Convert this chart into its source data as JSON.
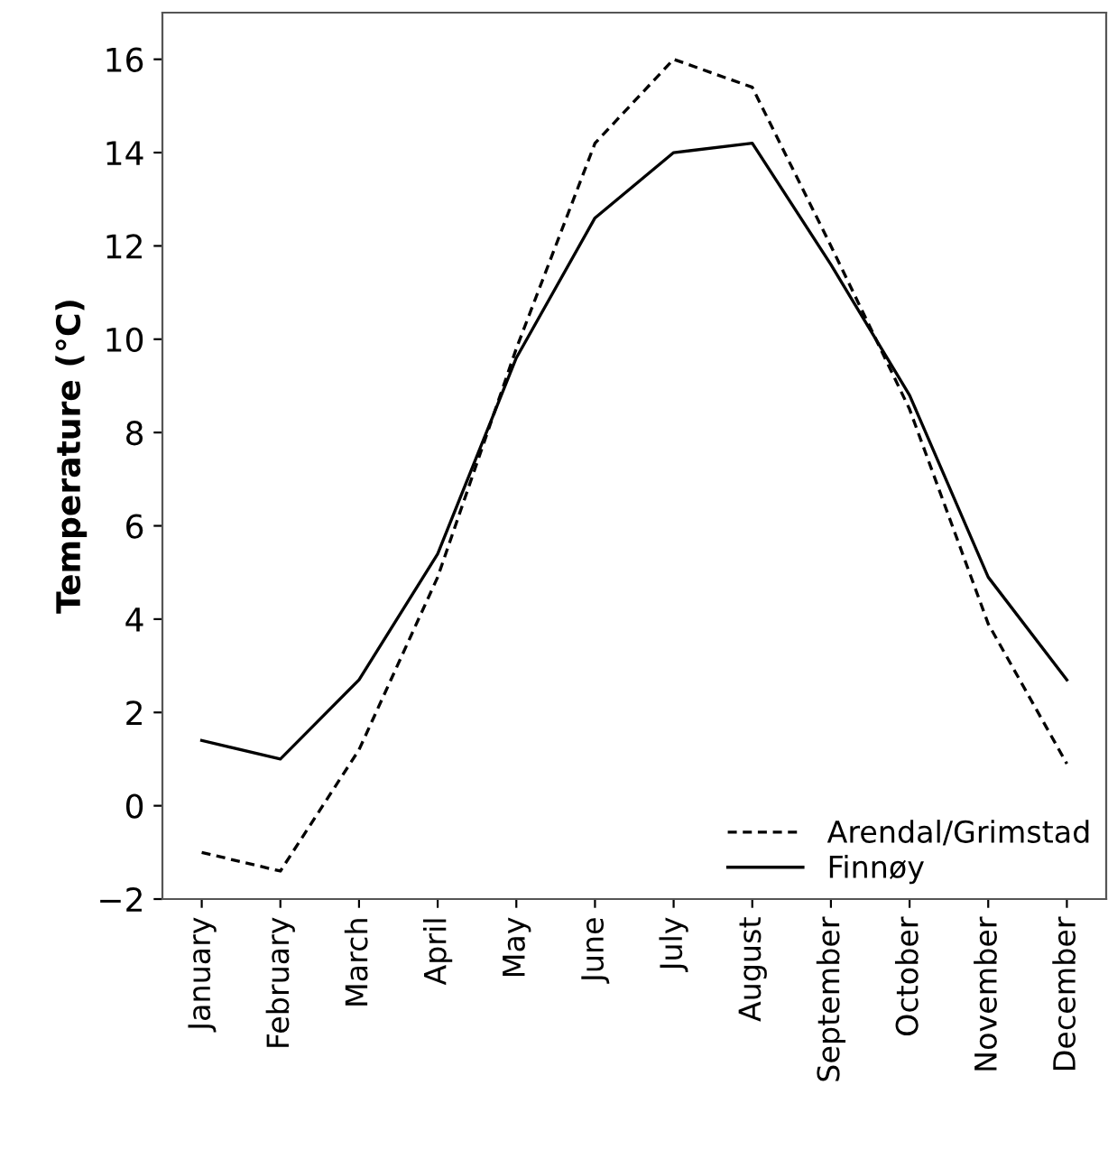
{
  "chart_data": {
    "type": "line",
    "ylabel": "Temperature (°C)",
    "categories": [
      "January",
      "February",
      "March",
      "April",
      "May",
      "June",
      "July",
      "August",
      "September",
      "October",
      "November",
      "December"
    ],
    "series": [
      {
        "name": "Arendal/Grimstad",
        "color": "#000000",
        "line_style": "dashed",
        "values": [
          -1.0,
          -1.4,
          1.2,
          4.9,
          9.8,
          14.2,
          16.0,
          15.4,
          12.0,
          8.5,
          3.9,
          0.9
        ]
      },
      {
        "name": "Finnøy",
        "color": "#000000",
        "line_style": "solid",
        "values": [
          1.4,
          1.0,
          2.7,
          5.4,
          9.6,
          12.6,
          14.0,
          14.2,
          11.6,
          8.8,
          4.9,
          2.7
        ]
      }
    ],
    "ylim": [
      -2,
      17
    ],
    "yticks": [
      -2,
      0,
      2,
      4,
      6,
      8,
      10,
      12,
      14,
      16
    ],
    "grid": false,
    "legend": "bottom right",
    "marker": "none"
  }
}
